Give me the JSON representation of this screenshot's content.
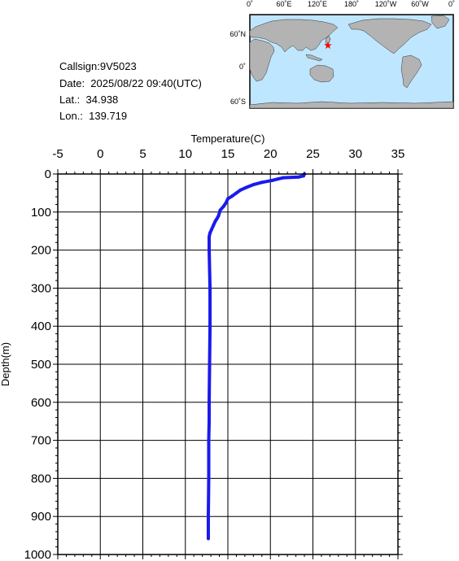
{
  "info": {
    "callsign": "Callsign:9V5023",
    "date": "Date:  2025/08/22 09:40(UTC)",
    "lat": "Lat.:  34.938",
    "lon": "Lon.:  139.719"
  },
  "map": {
    "lon_labels": [
      "0˚",
      "60˚E",
      "120˚E",
      "180˚",
      "120˚W",
      "60˚W",
      "0˚"
    ],
    "lat_labels": [
      "60˚N",
      "0˚",
      "60˚S"
    ],
    "marker_color": "#ff0000",
    "ocean_color": "#bfe6ff",
    "land_color": "#b3b3b3"
  },
  "chart_data": {
    "type": "line",
    "xlabel": "Temperature(C)",
    "ylabel": "Depth(m)",
    "xlim": [
      -5,
      35
    ],
    "ylim": [
      1000,
      0
    ],
    "x_ticks": [
      "-5",
      "0",
      "5",
      "10",
      "15",
      "20",
      "25",
      "30",
      "35"
    ],
    "y_ticks": [
      "0",
      "100",
      "200",
      "300",
      "400",
      "500",
      "600",
      "700",
      "800",
      "900",
      "1000"
    ],
    "grid": true,
    "series": [
      {
        "color": "#1a1aee",
        "x": [
          24.0,
          23.9,
          23.3,
          21.5,
          20.9,
          20.2,
          19.0,
          18.0,
          17.2,
          16.5,
          16.0,
          15.5,
          15.0,
          14.8,
          14.5,
          14.1,
          13.9,
          13.7,
          13.5,
          13.3,
          13.1,
          12.9,
          12.8,
          12.8,
          12.85,
          12.9,
          12.9,
          12.85,
          12.8,
          12.8,
          12.75,
          12.75,
          12.7,
          12.7
        ],
        "y": [
          0,
          5,
          8,
          10,
          13,
          17,
          22,
          28,
          35,
          42,
          50,
          58,
          65,
          75,
          85,
          95,
          110,
          118,
          125,
          135,
          145,
          155,
          165,
          200,
          250,
          300,
          400,
          500,
          600,
          650,
          700,
          800,
          900,
          958
        ]
      }
    ]
  }
}
